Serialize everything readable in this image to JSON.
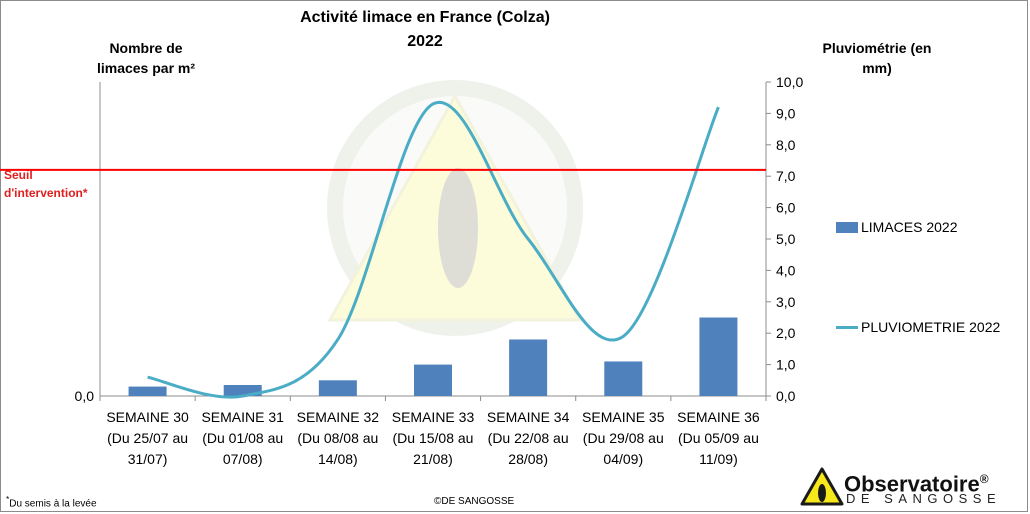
{
  "chart_data": {
    "type": "bar",
    "title": "Activité limace en France (Colza)",
    "subtitle": "2022",
    "ylabel_left": "Nombre de limaces par m²",
    "ylabel_right": "Pluviométrie (en mm)",
    "categories": [
      [
        "SEMAINE 30",
        "(Du 25/07 au",
        "31/07)"
      ],
      [
        "SEMAINE 31",
        "(Du 01/08 au",
        "07/08)"
      ],
      [
        "SEMAINE 32",
        "(Du 08/08 au",
        "14/08)"
      ],
      [
        "SEMAINE 33",
        "(Du 15/08 au",
        "21/08)"
      ],
      [
        "SEMAINE 34",
        "(Du 22/08 au",
        "28/08)"
      ],
      [
        "SEMAINE 35",
        "(Du 29/08 au",
        "04/09)"
      ],
      [
        "SEMAINE 36",
        "(Du 05/09 au",
        "11/09)"
      ]
    ],
    "left_ticks": [
      "0,0"
    ],
    "right_ticks": [
      "0,0",
      "1,0",
      "2,0",
      "3,0",
      "4,0",
      "5,0",
      "6,0",
      "7,0",
      "8,0",
      "9,0",
      "10,0"
    ],
    "right_ylim": [
      0,
      10
    ],
    "series": [
      {
        "name": "LIMACES 2022",
        "type": "bar",
        "axis": "left",
        "color": "#4f81bd",
        "values": [
          0.3,
          0.35,
          0.5,
          1.0,
          1.8,
          1.1,
          2.5
        ]
      },
      {
        "name": "PLUVIOMETRIE 2022",
        "type": "line",
        "axis": "right",
        "color": "#4bacc6",
        "values": [
          0.6,
          0.0,
          1.8,
          9.3,
          5.0,
          1.9,
          9.2
        ]
      }
    ],
    "threshold": {
      "label_line1": "Seuil",
      "label_line2": "d'intervention*",
      "value": 7.2,
      "color": "#ff0000"
    },
    "grid": false,
    "legend": "right"
  },
  "footnote": {
    "mark": "*",
    "text": "Du semis à la levée"
  },
  "copyright": "©DE SANGOSSE",
  "logo": {
    "name": "Observatoire",
    "registered": "®",
    "sub": "DE SANGOSSE"
  }
}
